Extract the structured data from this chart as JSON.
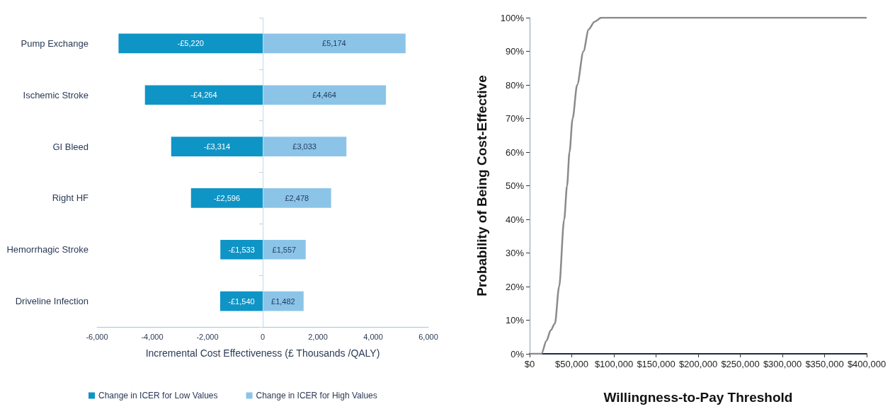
{
  "chart_data": [
    {
      "type": "bar",
      "orientation": "horizontal",
      "stacked": true,
      "legend": "bottom",
      "xlabel": "Incremental Cost Effectiveness (£ Thousands /QALY)",
      "categories": [
        "Pump Exchange",
        "Ischemic Stroke",
        "GI Bleed",
        "Right HF",
        "Hemorrhagic Stroke",
        "Driveline Infection"
      ],
      "series": [
        {
          "name": "Change in ICER for Low Values",
          "color": "#0f94c6",
          "values": [
            -5220,
            -4264,
            -3314,
            -2596,
            -1533,
            -1540
          ],
          "value_labels": [
            "-£5,220",
            "-£4,264",
            "-£3,314",
            "-£2,596",
            "-£1,533",
            "-£1,540"
          ]
        },
        {
          "name": "Change in ICER for High Values",
          "color": "#8cc4e8",
          "values": [
            5174,
            4464,
            3033,
            2478,
            1557,
            1482
          ],
          "value_labels": [
            "£5,174",
            "£4,464",
            "£3,033",
            "£2,478",
            "£1,557",
            "£1,482"
          ]
        }
      ],
      "ref_lines": [
        {
          "axis": "x",
          "value": 0,
          "color": "#b7dcef"
        }
      ],
      "xlim": [
        -6000,
        6000
      ],
      "xticks": [
        {
          "value": -6000,
          "label": "-6,000"
        },
        {
          "value": -4000,
          "label": "-4,000"
        },
        {
          "value": -2000,
          "label": "-2,000"
        },
        0,
        {
          "value": 2000,
          "label": "2,000"
        },
        {
          "value": 4000,
          "label": "4,000"
        },
        {
          "value": 6000,
          "label": "6,000"
        }
      ]
    },
    {
      "type": "line",
      "marker": "none",
      "xlabel": "Willingness-to-Pay Threshold",
      "ylabel": "Probability of Being Cost-Effective",
      "color": "#8a8a8e",
      "x": [
        0,
        14000,
        20000,
        25000,
        30000,
        35000,
        41000,
        44400,
        47300,
        51000,
        56400,
        63900,
        70000,
        77000,
        85000,
        400000
      ],
      "values": [
        0,
        0,
        3.9,
        7,
        9,
        20,
        40,
        50,
        60,
        70,
        80,
        90,
        96.5,
        98.8,
        100,
        100
      ],
      "xlim": [
        0,
        400000
      ],
      "xticks": [
        {
          "value": 0,
          "label": "$0"
        },
        {
          "value": 50000,
          "label": "$50,000"
        },
        {
          "value": 100000,
          "label": "$100,000"
        },
        {
          "value": 150000,
          "label": "$150,000"
        },
        {
          "value": 200000,
          "label": "$200,000"
        },
        {
          "value": 250000,
          "label": "$250,000"
        },
        {
          "value": 300000,
          "label": "$300,000"
        },
        {
          "value": 350000,
          "label": "$350,000"
        },
        {
          "value": 400000,
          "label": "$400,000"
        }
      ],
      "ylim": [
        0,
        100
      ],
      "yticks": [
        {
          "value": 0,
          "label": "0%"
        },
        {
          "value": 10,
          "label": "10%"
        },
        {
          "value": 20,
          "label": "20%"
        },
        {
          "value": 30,
          "label": "30%"
        },
        {
          "value": 40,
          "label": "40%"
        },
        {
          "value": 50,
          "label": "50%"
        },
        {
          "value": 60,
          "label": "60%"
        },
        {
          "value": 70,
          "label": "70%"
        },
        {
          "value": 80,
          "label": "80%"
        },
        {
          "value": 90,
          "label": "90%"
        },
        {
          "value": 100,
          "label": "100%"
        }
      ]
    }
  ]
}
